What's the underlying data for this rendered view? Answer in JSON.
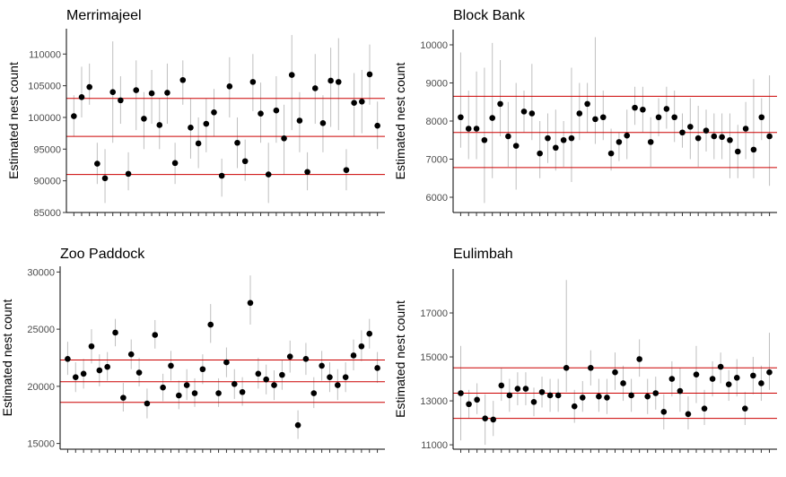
{
  "colors": {
    "point": "#000000",
    "errorbar": "#bfbfbf",
    "refline": "#cc0000",
    "axis": "#000000",
    "ticklabel": "#4d4d4d"
  },
  "chart_data": [
    {
      "type": "scatter",
      "title": "Merrimajeel",
      "ylabel": "Estimated nest count",
      "ylim": [
        85000,
        114000
      ],
      "yticks": [
        85000,
        90000,
        95000,
        100000,
        105000,
        110000
      ],
      "ytick_labels": [
        "85000",
        "90000",
        "95000",
        "100000",
        "105000",
        "110000"
      ],
      "reference_lines": [
        91000,
        97000,
        103000
      ],
      "grid": false,
      "values": [
        100200,
        103200,
        104800,
        92700,
        90400,
        104000,
        102700,
        91100,
        104300,
        99800,
        103800,
        98800,
        103900,
        92800,
        105900,
        98400,
        95900,
        99000,
        100800,
        90800,
        104900,
        96000,
        93100,
        105600,
        100600,
        91000,
        101100,
        96700,
        106700,
        99500,
        91400,
        104600,
        99100,
        105800,
        105600,
        91700,
        102300,
        102500,
        106800,
        98700
      ],
      "lower": [
        97000,
        100000,
        102000,
        89500,
        86500,
        96000,
        99000,
        88500,
        98000,
        95000,
        99000,
        95000,
        99000,
        89500,
        102000,
        93500,
        92000,
        94500,
        97000,
        87500,
        100000,
        92000,
        90000,
        101000,
        96000,
        86500,
        96000,
        91000,
        98000,
        94500,
        88500,
        99000,
        94500,
        98500,
        98000,
        88500,
        97000,
        97500,
        102000,
        95000
      ],
      "upper": [
        103500,
        108000,
        108500,
        96000,
        95000,
        112000,
        106500,
        94500,
        109000,
        104000,
        107500,
        103000,
        108500,
        96000,
        109000,
        103000,
        100000,
        103000,
        104500,
        93500,
        109500,
        100000,
        96500,
        110000,
        105500,
        96000,
        106500,
        102000,
        113000,
        104000,
        94500,
        110000,
        103500,
        111000,
        112500,
        95000,
        107000,
        107500,
        111500,
        102500
      ]
    },
    {
      "type": "scatter",
      "title": "Block Bank",
      "ylabel": "Estimated nest count",
      "ylim": [
        5600,
        10400
      ],
      "yticks": [
        6000,
        7000,
        8000,
        9000,
        10000
      ],
      "ytick_labels": [
        "6000",
        "7000",
        "8000",
        "9000",
        "10000"
      ],
      "reference_lines": [
        6780,
        7700,
        8650
      ],
      "grid": false,
      "values": [
        8100,
        7800,
        7800,
        7500,
        8080,
        8450,
        7600,
        7350,
        8250,
        8200,
        7150,
        7550,
        7300,
        7500,
        7550,
        8200,
        8450,
        8050,
        8100,
        7150,
        7450,
        7620,
        8350,
        8300,
        7450,
        8100,
        8320,
        8100,
        7700,
        7850,
        7550,
        7750,
        7600,
        7580,
        7500,
        7200,
        7800,
        7250,
        8100,
        7600
      ],
      "lower": [
        7300,
        7000,
        7000,
        5850,
        6500,
        7600,
        6800,
        6200,
        7700,
        7500,
        6500,
        6900,
        6700,
        6800,
        6400,
        7500,
        7700,
        7400,
        7500,
        6700,
        6950,
        7000,
        7900,
        7700,
        6800,
        7600,
        7800,
        7450,
        7300,
        7000,
        6800,
        7200,
        7000,
        7000,
        6500,
        6500,
        7000,
        6500,
        7500,
        6300
      ],
      "upper": [
        9800,
        8800,
        9300,
        9400,
        10050,
        9600,
        8500,
        9000,
        8800,
        9500,
        8000,
        8200,
        8300,
        8000,
        9400,
        9000,
        9000,
        10200,
        8800,
        7800,
        7700,
        8300,
        8900,
        8900,
        8100,
        8600,
        8900,
        8800,
        8200,
        8600,
        8400,
        8300,
        8200,
        8200,
        8200,
        7900,
        8500,
        9100,
        8600,
        9200
      ]
    },
    {
      "type": "scatter",
      "title": "Zoo Paddock",
      "ylabel": "Estimated nest count",
      "ylim": [
        14500,
        30500
      ],
      "yticks": [
        15000,
        20000,
        25000,
        30000
      ],
      "ytick_labels": [
        "15000",
        "20000",
        "25000",
        "30000"
      ],
      "reference_lines": [
        18600,
        20400,
        22300
      ],
      "grid": false,
      "values": [
        22400,
        20800,
        21100,
        23500,
        21400,
        21700,
        24700,
        19000,
        22800,
        21200,
        18500,
        24500,
        19900,
        21800,
        19200,
        20100,
        19400,
        21500,
        25400,
        19400,
        22100,
        20200,
        19500,
        27300,
        21100,
        20600,
        20100,
        21000,
        22600,
        16600,
        22400,
        19400,
        21800,
        20800,
        20100,
        20800,
        22700,
        23500,
        24600,
        21600
      ],
      "lower": [
        21000,
        19500,
        19800,
        22000,
        20000,
        20500,
        23500,
        17800,
        21500,
        20000,
        17200,
        23300,
        18700,
        20500,
        18000,
        18800,
        18200,
        20200,
        23800,
        18200,
        20800,
        18900,
        18300,
        25400,
        19800,
        19300,
        18800,
        19700,
        21200,
        15400,
        21000,
        18100,
        20500,
        19500,
        18800,
        19500,
        21400,
        22200,
        23300,
        20300
      ],
      "upper": [
        23900,
        22100,
        22400,
        25000,
        22800,
        23000,
        25900,
        20300,
        24100,
        22500,
        19800,
        25800,
        21100,
        23100,
        20500,
        21500,
        20700,
        22800,
        27200,
        20700,
        23400,
        21500,
        20800,
        29700,
        22500,
        21900,
        21400,
        22300,
        24000,
        17900,
        23800,
        20800,
        23100,
        22100,
        21500,
        22100,
        24100,
        24900,
        25900,
        23000
      ]
    },
    {
      "type": "scatter",
      "title": "Eulimbah",
      "ylabel": "Estimated nest count",
      "ylim": [
        10800,
        19000
      ],
      "yticks": [
        11000,
        13000,
        15000,
        17000
      ],
      "ytick_labels": [
        "11000",
        "13000",
        "15000",
        "17000"
      ],
      "reference_lines": [
        12200,
        13350,
        14500
      ],
      "grid": false,
      "values": [
        13350,
        12850,
        13050,
        12200,
        12150,
        13700,
        13250,
        13550,
        13550,
        12950,
        13400,
        13250,
        13250,
        14500,
        12750,
        13150,
        14500,
        13200,
        13150,
        14300,
        13800,
        13250,
        14900,
        13200,
        13350,
        12500,
        14000,
        13450,
        12400,
        14200,
        12650,
        14000,
        14550,
        13750,
        14050,
        12650,
        14150,
        13800,
        14300
      ],
      "lower": [
        11200,
        12200,
        12400,
        11000,
        11400,
        13000,
        12500,
        12800,
        12800,
        12300,
        12700,
        12500,
        12500,
        13400,
        12000,
        12500,
        13700,
        12500,
        12400,
        13500,
        13000,
        12500,
        14100,
        12400,
        12600,
        11700,
        13200,
        12500,
        11700,
        12900,
        11900,
        13200,
        13800,
        13000,
        13200,
        11900,
        13300,
        13000,
        13500
      ],
      "upper": [
        15500,
        13500,
        13800,
        13300,
        13000,
        14500,
        14000,
        14300,
        14300,
        13600,
        14100,
        14000,
        14000,
        18500,
        13500,
        13900,
        15300,
        14000,
        14000,
        15200,
        14600,
        14000,
        15800,
        14000,
        14100,
        13300,
        14800,
        14500,
        13200,
        15500,
        13500,
        14800,
        15200,
        14400,
        14900,
        13400,
        15000,
        14600,
        16100
      ]
    }
  ]
}
